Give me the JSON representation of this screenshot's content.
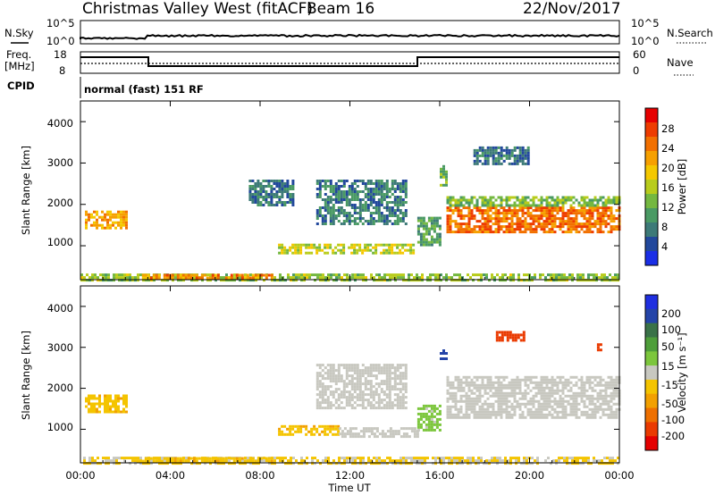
{
  "header": {
    "station": "Christmas Valley West (fitACF)",
    "beam": "Beam 16",
    "date": "22/Nov/2017"
  },
  "status_panels": {
    "nsky_label": "N.Sky",
    "nsky_ticks": [
      "10^5",
      "10^0"
    ],
    "nsearch_label": "N.Search",
    "nsearch_ticks": [
      "10^5",
      "10^0"
    ],
    "freq_label_1": "Freq.",
    "freq_label_2": "[MHz]",
    "freq_ticks": [
      "18",
      "8"
    ],
    "nave_label": "Nave",
    "nave_ticks": [
      "60",
      "0"
    ],
    "cpid_label": "CPID",
    "cpid_value": "normal (fast) 151 RF"
  },
  "x_axis": {
    "label": "Time UT",
    "ticks": [
      "00:00",
      "04:00",
      "08:00",
      "12:00",
      "16:00",
      "20:00",
      "00:00"
    ]
  },
  "colors": {
    "power_scale": [
      "#1a2ee6",
      "#22489c",
      "#3d7a78",
      "#4a9a64",
      "#74b840",
      "#b8cc1c",
      "#f4c800",
      "#f6a000",
      "#f27000",
      "#ee3c00",
      "#e60000"
    ],
    "velocity_scale": [
      "#1f2fe0",
      "#2444a8",
      "#3a7248",
      "#4e9e3a",
      "#7cc63c",
      "#c8c8c0",
      "#f4c400",
      "#f2a000",
      "#ee7000",
      "#ea3a00",
      "#e40000"
    ]
  },
  "chart_data": [
    {
      "type": "heatmap",
      "title": "",
      "xlabel": "",
      "ylabel": "Slant Range [km]",
      "ylim": [
        180,
        4500
      ],
      "xlim": [
        0,
        24
      ],
      "yticks": [
        "1000",
        "2000",
        "3000",
        "4000"
      ],
      "colorbar": {
        "label": "Power [dB]",
        "ticks": [
          "4",
          "8",
          "12",
          "16",
          "20",
          "24",
          "28"
        ],
        "range": [
          0,
          32
        ]
      },
      "regions": [
        {
          "t": [
            0.0,
            24.0
          ],
          "r": [
            180,
            330
          ],
          "value": 14
        },
        {
          "t": [
            2.5,
            8.5
          ],
          "r": [
            200,
            320
          ],
          "value": 24
        },
        {
          "t": [
            0.2,
            2.0
          ],
          "r": [
            1450,
            1850
          ],
          "value": 22
        },
        {
          "t": [
            8.8,
            14.8
          ],
          "r": [
            800,
            1050
          ],
          "value": 16
        },
        {
          "t": [
            15.0,
            16.0
          ],
          "r": [
            1000,
            1700
          ],
          "value": 10
        },
        {
          "t": [
            16.0,
            16.3
          ],
          "r": [
            2450,
            2950
          ],
          "value": 12
        },
        {
          "t": [
            16.3,
            24.0
          ],
          "r": [
            1350,
            1950
          ],
          "value": 26
        },
        {
          "t": [
            16.3,
            24.0
          ],
          "r": [
            1950,
            2200
          ],
          "value": 13
        },
        {
          "t": [
            17.5,
            20.0
          ],
          "r": [
            3000,
            3400
          ],
          "value": 6
        },
        {
          "t": [
            10.5,
            14.5
          ],
          "r": [
            1500,
            2600
          ],
          "value": 7
        },
        {
          "t": [
            7.5,
            9.5
          ],
          "r": [
            2000,
            2600
          ],
          "value": 6
        }
      ]
    },
    {
      "type": "heatmap",
      "title": "",
      "xlabel": "Time UT",
      "ylabel": "Slant Range [km]",
      "ylim": [
        180,
        4500
      ],
      "xlim": [
        0,
        24
      ],
      "yticks": [
        "1000",
        "2000",
        "3000",
        "4000"
      ],
      "colorbar": {
        "label": "Velocity [m s⁻¹]",
        "ticks": [
          "200",
          "100",
          "50",
          "15",
          "-15",
          "-50",
          "-100",
          "-200"
        ],
        "range": [
          -250,
          250
        ]
      },
      "regions": [
        {
          "t": [
            0.0,
            24.0
          ],
          "r": [
            180,
            330
          ],
          "value": -30
        },
        {
          "t": [
            2.5,
            8.5
          ],
          "r": [
            200,
            320
          ],
          "value": -60
        },
        {
          "t": [
            0.2,
            2.0
          ],
          "r": [
            1450,
            1850
          ],
          "value": -60
        },
        {
          "t": [
            8.8,
            11.5
          ],
          "r": [
            850,
            1100
          ],
          "value": -60
        },
        {
          "t": [
            11.5,
            15.0
          ],
          "r": [
            800,
            1050
          ],
          "value": 0
        },
        {
          "t": [
            15.0,
            16.0
          ],
          "r": [
            1000,
            1600
          ],
          "value": 40
        },
        {
          "t": [
            16.0,
            16.3
          ],
          "r": [
            2700,
            2950
          ],
          "value": 200
        },
        {
          "t": [
            16.3,
            24.0
          ],
          "r": [
            1300,
            2300
          ],
          "value": 0
        },
        {
          "t": [
            18.5,
            19.8
          ],
          "r": [
            3200,
            3400
          ],
          "value": -200
        },
        {
          "t": [
            23.0,
            23.2
          ],
          "r": [
            2950,
            3100
          ],
          "value": -200
        },
        {
          "t": [
            10.5,
            14.5
          ],
          "r": [
            1500,
            2600
          ],
          "value": 0
        }
      ]
    }
  ]
}
